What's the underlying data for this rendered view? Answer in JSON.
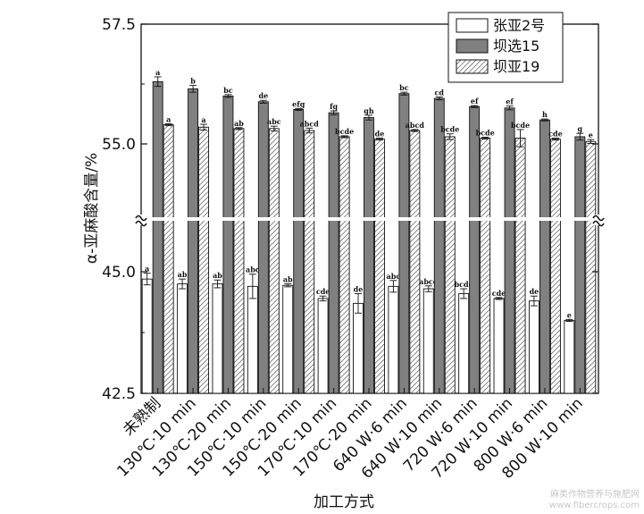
{
  "chart_data": {
    "type": "bar",
    "xlabel": "加工方式",
    "ylabel": "α-亚麻酸含量/%",
    "axis_break": [
      45.6,
      54.8
    ],
    "ylim": [
      42.5,
      57.5
    ],
    "yticks": [
      "42.5",
      "45.0",
      "55.0",
      "57.5"
    ],
    "legend_position": "top-right",
    "categories": [
      "未熟制",
      "130℃·10 min",
      "130℃·20 min",
      "150℃·10 min",
      "150℃·20 min",
      "170℃·10 min",
      "170℃·20 min",
      "640 W·6 min",
      "640 W·10 min",
      "720 W·6 min",
      "720 W·10 min",
      "800 W·6 min",
      "800 W·10 min"
    ],
    "series": [
      {
        "name": "张亚2号",
        "values": [
          44.85,
          44.75,
          44.75,
          44.7,
          44.72,
          44.45,
          44.35,
          44.7,
          44.65,
          44.55,
          44.45,
          44.4,
          44.0
        ],
        "errors": [
          0.12,
          0.1,
          0.08,
          0.25,
          0.03,
          0.05,
          0.2,
          0.12,
          0.06,
          0.1,
          0.02,
          0.1,
          0.02
        ],
        "sig": [
          "a",
          "ab",
          "ab",
          "abc",
          "ab",
          "cde",
          "de",
          "abc",
          "abcd",
          "bcde",
          "cde",
          "de",
          "e"
        ]
      },
      {
        "name": "坝选15",
        "values": [
          56.3,
          56.15,
          56.0,
          55.88,
          55.72,
          55.65,
          55.55,
          56.05,
          55.95,
          55.78,
          55.75,
          55.5,
          55.15
        ],
        "errors": [
          0.1,
          0.07,
          0.03,
          0.03,
          0.02,
          0.04,
          0.05,
          0.03,
          0.03,
          0.02,
          0.04,
          0.02,
          0.07
        ],
        "sig": [
          "a",
          "b",
          "bc",
          "de",
          "efg",
          "fg",
          "gh",
          "bc",
          "cd",
          "ef",
          "ef",
          "h",
          "g"
        ]
      },
      {
        "name": "坝亚19",
        "values": [
          55.4,
          55.35,
          55.32,
          55.32,
          55.28,
          55.15,
          55.1,
          55.28,
          55.15,
          55.12,
          55.12,
          55.1,
          55.05
        ],
        "errors": [
          0.02,
          0.06,
          0.02,
          0.05,
          0.05,
          0.02,
          0.02,
          0.02,
          0.06,
          0.02,
          0.18,
          0.02,
          0.04
        ],
        "sig": [
          "a",
          "a",
          "ab",
          "abc",
          "abcd",
          "bcde",
          "de",
          "abcd",
          "bcde",
          "bcde",
          "bcde",
          "cde",
          "e"
        ]
      }
    ]
  },
  "watermark": "麻类作物营养与施肥网\nwww.fibercrops.com"
}
